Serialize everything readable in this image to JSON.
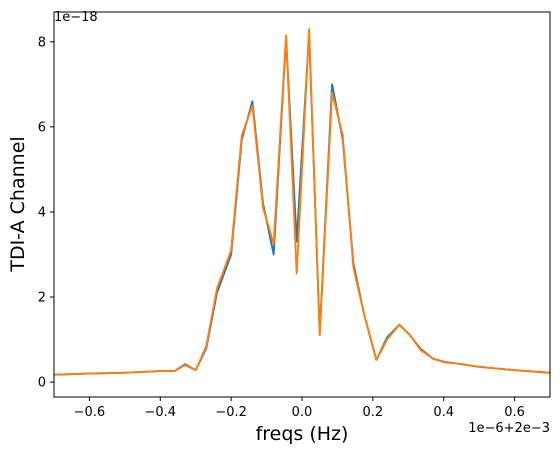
{
  "chart_data": {
    "type": "line",
    "title": "",
    "xlabel": "freqs (Hz)",
    "ylabel": "TDI-A Channel",
    "x_offset_label": "1e−6+2e−3",
    "y_offset_label": "1e−18",
    "xlim": [
      -0.7,
      0.7
    ],
    "ylim": [
      -0.35,
      8.7
    ],
    "xticks": [
      -0.6,
      -0.4,
      -0.2,
      0.0,
      0.2,
      0.4,
      0.6
    ],
    "xtick_labels": [
      "−0.6",
      "−0.4",
      "−0.2",
      "0.0",
      "0.2",
      "0.4",
      "0.6"
    ],
    "yticks": [
      0,
      2,
      4,
      6,
      8
    ],
    "ytick_labels": [
      "0",
      "2",
      "4",
      "6",
      "8"
    ],
    "grid": false,
    "colors": {
      "series_1": "#1f77b4",
      "series_2": "#ff7f0e"
    },
    "series": [
      {
        "x": [
          -0.72,
          -0.6,
          -0.5,
          -0.4,
          -0.36,
          -0.33,
          -0.3,
          -0.27,
          -0.24,
          -0.2,
          -0.17,
          -0.14,
          -0.11,
          -0.08,
          -0.045,
          -0.015,
          0.02,
          0.05,
          0.085,
          0.115,
          0.145,
          0.175,
          0.21,
          0.24,
          0.275,
          0.305,
          0.335,
          0.37,
          0.4,
          0.45,
          0.5,
          0.6,
          0.7
        ],
        "y": [
          0.17,
          0.2,
          0.22,
          0.26,
          0.26,
          0.42,
          0.28,
          0.8,
          2.1,
          3.0,
          5.7,
          6.6,
          4.2,
          3.0,
          8.1,
          3.3,
          8.2,
          1.15,
          7.0,
          5.7,
          2.8,
          1.6,
          0.52,
          1.05,
          1.35,
          1.1,
          0.78,
          0.55,
          0.48,
          0.42,
          0.36,
          0.28,
          0.22
        ]
      },
      {
        "x": [
          -0.72,
          -0.6,
          -0.5,
          -0.4,
          -0.36,
          -0.33,
          -0.3,
          -0.27,
          -0.24,
          -0.2,
          -0.17,
          -0.14,
          -0.11,
          -0.08,
          -0.045,
          -0.015,
          0.02,
          0.05,
          0.085,
          0.115,
          0.145,
          0.175,
          0.21,
          0.24,
          0.275,
          0.305,
          0.335,
          0.37,
          0.4,
          0.45,
          0.5,
          0.6,
          0.7
        ],
        "y": [
          0.17,
          0.2,
          0.22,
          0.26,
          0.26,
          0.4,
          0.28,
          0.85,
          2.2,
          3.1,
          5.8,
          6.5,
          4.1,
          3.25,
          8.15,
          2.55,
          8.3,
          1.1,
          6.8,
          5.8,
          2.7,
          1.6,
          0.52,
          1.0,
          1.35,
          1.1,
          0.75,
          0.55,
          0.47,
          0.42,
          0.36,
          0.28,
          0.22
        ]
      }
    ]
  }
}
